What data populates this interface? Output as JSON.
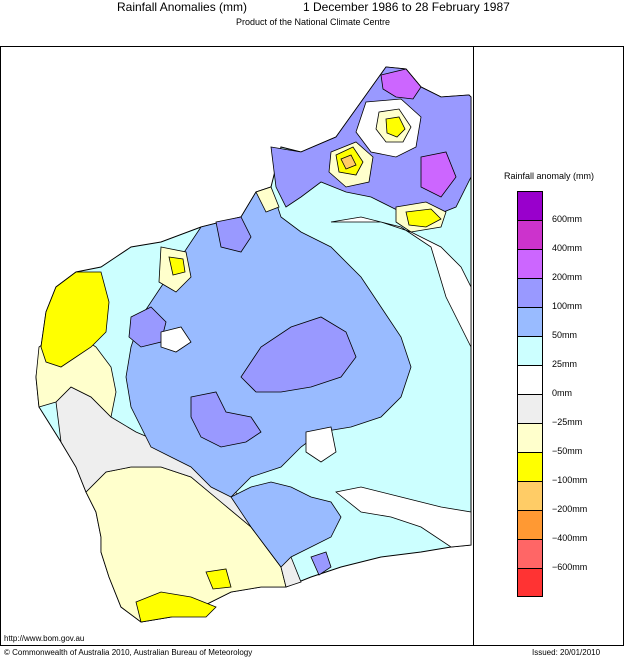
{
  "header": {
    "title": "Rainfall Anomalies (mm)",
    "period": "1 December 1986 to 28 February 1987",
    "subtitle": "Product of the National Climate Centre"
  },
  "legend": {
    "title": "Rainfall anomaly (mm)",
    "bins": [
      {
        "color": "#9900cc"
      },
      {
        "color": "#cc33cc"
      },
      {
        "color": "#cc66ff"
      },
      {
        "color": "#9999ff"
      },
      {
        "color": "#99bbff"
      },
      {
        "color": "#ccffff"
      },
      {
        "color": "#ffffff"
      },
      {
        "color": "#eeeeee"
      },
      {
        "color": "#ffffcc"
      },
      {
        "color": "#ffff00"
      },
      {
        "color": "#ffcc66"
      },
      {
        "color": "#ff9933"
      },
      {
        "color": "#ff6666"
      },
      {
        "color": "#ff3333"
      }
    ],
    "labels": [
      "600mm",
      "400mm",
      "200mm",
      "100mm",
      "50mm",
      "25mm",
      "0mm",
      "−25mm",
      "−50mm",
      "−100mm",
      "−200mm",
      "−400mm",
      "−600mm"
    ]
  },
  "footer": {
    "url": "http://www.bom.gov.au",
    "copyright": "© Commonwealth of Australia 2010, Australian Bureau of Meteorology",
    "issued": "Issued: 20/01/2010"
  }
}
